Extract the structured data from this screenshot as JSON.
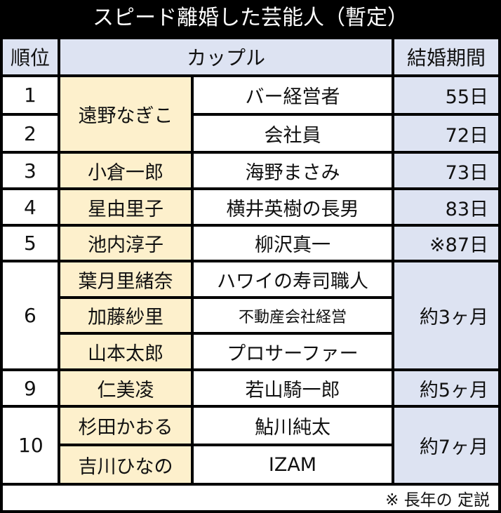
{
  "title": "スピード離婚した芸能人（暫定）",
  "headers": {
    "rank": "順位",
    "couple": "カップル",
    "duration": "結婚期間"
  },
  "rows": [
    {
      "rank": "1",
      "name": "遠野なぎこ",
      "partners": [
        "バー経営者",
        "会社員"
      ],
      "durations": [
        "55日",
        "72日"
      ]
    },
    {
      "rank": "3",
      "name": "小倉一郎",
      "partners": [
        "海野まさみ"
      ],
      "durations": [
        "73日"
      ]
    },
    {
      "rank": "4",
      "name": "星由里子",
      "partners": [
        "横井英樹の長男"
      ],
      "durations": [
        "83日"
      ]
    },
    {
      "rank": "5",
      "name": "池内淳子",
      "partners": [
        "柳沢真一"
      ],
      "durations": [
        "※87日"
      ]
    },
    {
      "rank": "6",
      "names": [
        "葉月里緒奈",
        "加藤紗里",
        "山本太郎"
      ],
      "partners": [
        "ハワイの寿司職人",
        "不動産会社経営",
        "プロサーファー"
      ],
      "duration": "約3ヶ月"
    },
    {
      "rank": "9",
      "name": "仁美凌",
      "partners": [
        "若山騎一郎"
      ],
      "durations": [
        "約5ヶ月"
      ]
    },
    {
      "rank": "10",
      "names": [
        "杉田かおる",
        "吉川ひなの"
      ],
      "partners": [
        "鮎川純太",
        "IZAM"
      ],
      "duration": "約7ヶ月"
    }
  ],
  "rank_2": "2",
  "footnote": "※ 長年の 定説",
  "colors": {
    "name_cell": "#fdf0cc",
    "header": "#dde3f2",
    "border": "#000000"
  }
}
